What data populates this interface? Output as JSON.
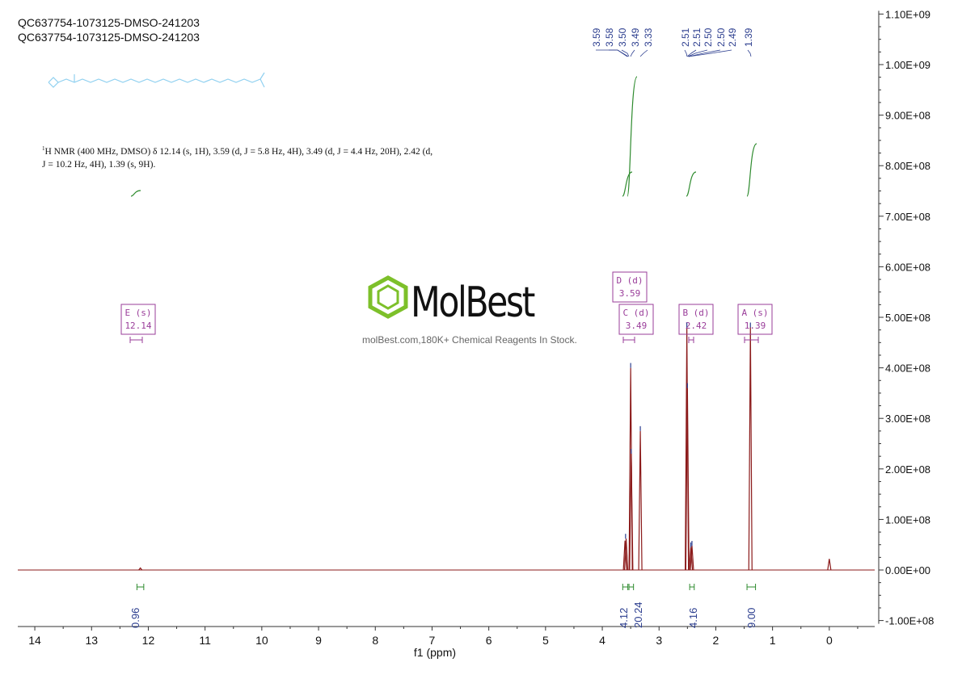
{
  "header": {
    "title_line_1": "QC637754-1073125-DMSO-241203",
    "title_line_2": "QC637754-1073125-DMSO-241203"
  },
  "nmr_description": {
    "prefix_sup": "1",
    "line1": "H NMR (400 MHz, DMSO) δ 12.14 (s, 1H), 3.59 (d, J = 5.8 Hz, 4H), 3.49 (d, J = 4.4 Hz, 20H), 2.42 (d,",
    "line2": "J = 10.2 Hz, 4H), 1.39 (s, 9H)."
  },
  "watermark": {
    "brand": "MolBest",
    "tagline": "molBest.com,180K+ Chemical Reagents In Stock."
  },
  "colors": {
    "spectrum": "#8b1a1a",
    "integral": "#2e8b2e",
    "peak_label": "#2c3e8f",
    "multiplet_box": "#9a3d9a",
    "logo_green": "#7dc02a",
    "molecule": "#8fd0f0"
  },
  "chart_data": {
    "type": "line",
    "xlabel": "f1 (ppm)",
    "xlim": [
      14.3,
      -0.8
    ],
    "x_ticks": [
      "14",
      "13",
      "12",
      "11",
      "10",
      "9",
      "8",
      "7",
      "6",
      "5",
      "4",
      "3",
      "2",
      "1",
      "0"
    ],
    "ylim": [
      -100000000,
      1100000000
    ],
    "y_ticks": [
      "-1.00E+08",
      "0.00E+00",
      "1.00E+08",
      "2.00E+08",
      "3.00E+08",
      "4.00E+08",
      "5.00E+08",
      "6.00E+08",
      "7.00E+08",
      "8.00E+08",
      "9.00E+08",
      "1.00E+09",
      "1.10E+09"
    ],
    "peaks": [
      {
        "ppm": 12.14,
        "height": 4000000
      },
      {
        "ppm": 3.6,
        "height": 58000000
      },
      {
        "ppm": 3.58,
        "height": 62000000
      },
      {
        "ppm": 3.5,
        "height": 400000000
      },
      {
        "ppm": 3.49,
        "height": 230000000
      },
      {
        "ppm": 3.33,
        "height": 275000000
      },
      {
        "ppm": 2.51,
        "height": 480000000
      },
      {
        "ppm": 2.5,
        "height": 360000000
      },
      {
        "ppm": 2.44,
        "height": 45000000
      },
      {
        "ppm": 2.42,
        "height": 48000000
      },
      {
        "ppm": 1.39,
        "height": 480000000
      },
      {
        "ppm": 0.0,
        "height": 22000000
      }
    ],
    "peak_labels_group1": [
      "3.59",
      "3.58",
      "3.50",
      "3.49",
      "3.33"
    ],
    "peak_labels_group2": [
      "2.51",
      "2.51",
      "2.50",
      "2.50",
      "2.49",
      "1.39"
    ],
    "integrals": [
      {
        "from": 12.2,
        "to": 12.08,
        "value": "0.96"
      },
      {
        "from": 3.64,
        "to": 3.55,
        "value": "4.12"
      },
      {
        "from": 3.53,
        "to": 3.45,
        "value": "20.24"
      },
      {
        "from": 2.46,
        "to": 2.38,
        "value": "4.16"
      },
      {
        "from": 1.45,
        "to": 1.3,
        "value": "9.00"
      }
    ],
    "multiplets": [
      {
        "label": "E (s)",
        "shift": "12.14"
      },
      {
        "label": "D (d)",
        "shift": "3.59"
      },
      {
        "label": "C (d)",
        "shift": "3.49"
      },
      {
        "label": "B (d)",
        "shift": "2.42"
      },
      {
        "label": "A (s)",
        "shift": "1.39"
      }
    ]
  }
}
